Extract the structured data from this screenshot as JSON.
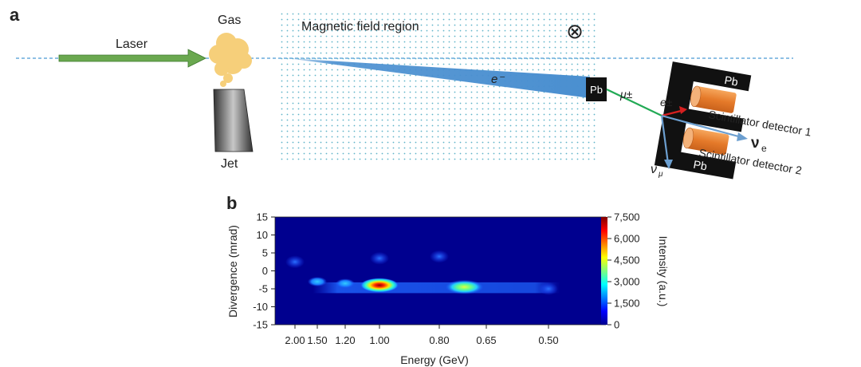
{
  "panel_a": {
    "letter": "a",
    "laser_label": "Laser",
    "gas_label": "Gas",
    "jet_label": "Jet",
    "magnet_label": "Magnetic field region",
    "field_symbol": "⊗",
    "electron_label": "e⁻",
    "converter_label": "Pb",
    "muon_label": "μ±",
    "shield_top_label": "Pb",
    "shield_bottom_label": "Pb",
    "positron_label": "e±",
    "detector1_label": "Scintillator detector 1",
    "detector2_label": "Scintillator detector 2",
    "nu_e_label": "ν",
    "nu_e_sub": "e",
    "nu_mu_label": "ν",
    "nu_mu_sub": "μ",
    "colors": {
      "laser": "#6aa84f",
      "beam": "#4a8fd0",
      "gas": "#f6cf7a",
      "jet": "#555555",
      "shield": "#111111",
      "detector": "#ee8a3c",
      "muon": "#22aa55",
      "positron": "#d62020",
      "neutrino": "#6c9fd0",
      "axis_line": "#4a9ad4"
    }
  },
  "panel_b": {
    "letter": "b",
    "chart_data": {
      "type": "heatmap",
      "xlabel": "Energy (GeV)",
      "ylabel": "Divergence (mrad)",
      "colorbar_label": "Intensity (a.u.)",
      "x_ticks": [
        "2.00",
        "1.50",
        "1.20",
        "1.00",
        "0.80",
        "0.65",
        "0.50"
      ],
      "y_ticks": [
        "15",
        "10",
        "5",
        "0",
        "-5",
        "-10",
        "-15"
      ],
      "y_range": [
        -15,
        15
      ],
      "colorbar_ticks": [
        "7,500",
        "6,000",
        "4,500",
        "3,000",
        "1,500",
        "0"
      ],
      "colorbar_range": [
        0,
        7500
      ],
      "hotspots": [
        {
          "energy": 1.0,
          "divergence": -4.0,
          "intensity": 7500
        },
        {
          "energy": 0.72,
          "divergence": -4.5,
          "intensity": 4000
        },
        {
          "energy": 1.2,
          "divergence": -3.5,
          "intensity": 2500
        },
        {
          "energy": 1.5,
          "divergence": -3.0,
          "intensity": 2000
        },
        {
          "energy": 2.0,
          "divergence": 2.5,
          "intensity": 1500
        },
        {
          "energy": 1.0,
          "divergence": 3.5,
          "intensity": 1200
        },
        {
          "energy": 0.8,
          "divergence": 4.0,
          "intensity": 1200
        },
        {
          "energy": 0.5,
          "divergence": -5.0,
          "intensity": 1800
        }
      ]
    }
  }
}
